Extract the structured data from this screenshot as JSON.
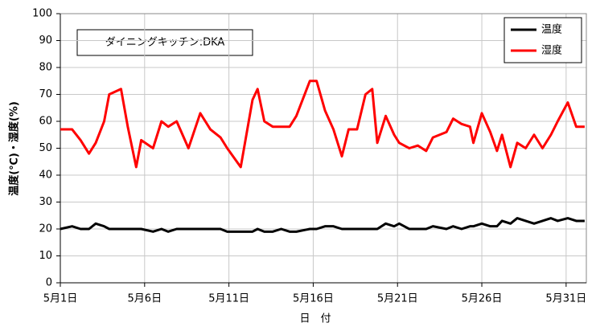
{
  "chart_data": {
    "type": "line",
    "annotation": "ダイニングキッチン:DKA",
    "xlabel": "日　付",
    "ylabel": "温度(℃)・湿度(%)",
    "x": [
      1.0,
      1.7,
      2.2,
      2.7,
      3.1,
      3.6,
      3.9,
      4.6,
      5.0,
      5.5,
      5.8,
      6.5,
      7.0,
      7.4,
      7.9,
      8.6,
      9.3,
      9.9,
      10.5,
      10.9,
      11.7,
      12.4,
      12.7,
      13.1,
      13.6,
      14.1,
      14.6,
      15.0,
      15.8,
      16.2,
      16.7,
      17.2,
      17.7,
      18.1,
      18.6,
      19.1,
      19.5,
      19.8,
      20.3,
      20.8,
      21.1,
      21.7,
      22.2,
      22.7,
      23.1,
      23.9,
      24.3,
      24.8,
      25.3,
      25.5,
      26.0,
      26.5,
      26.9,
      27.2,
      27.7,
      28.1,
      28.6,
      29.1,
      29.6,
      30.1,
      30.5,
      31.1,
      31.6,
      32.1
    ],
    "series": [
      {
        "name": "温度",
        "color": "#000000",
        "values": [
          20,
          21,
          20,
          20,
          22,
          21,
          20,
          20,
          20,
          20,
          20,
          19,
          20,
          19,
          20,
          20,
          20,
          20,
          20,
          19,
          19,
          19,
          20,
          19,
          19,
          20,
          19,
          19,
          20,
          20,
          21,
          21,
          20,
          20,
          20,
          20,
          20,
          20,
          22,
          21,
          22,
          20,
          20,
          20,
          21,
          20,
          21,
          20,
          21,
          21,
          22,
          21,
          21,
          23,
          22,
          24,
          23,
          22,
          23,
          24,
          23,
          24,
          23,
          23
        ]
      },
      {
        "name": "湿度",
        "color": "#ff0000",
        "values": [
          57,
          57,
          53,
          48,
          52,
          60,
          70,
          72,
          58,
          43,
          53,
          50,
          60,
          58,
          60,
          50,
          63,
          57,
          54,
          50,
          43,
          68,
          72,
          60,
          58,
          58,
          58,
          62,
          75,
          75,
          64,
          57,
          47,
          57,
          57,
          70,
          72,
          52,
          62,
          55,
          52,
          50,
          51,
          49,
          54,
          56,
          61,
          59,
          58,
          52,
          63,
          56,
          49,
          55,
          43,
          52,
          50,
          55,
          50,
          55,
          60,
          67,
          58,
          58
        ]
      }
    ],
    "xlim": [
      1,
      32.2
    ],
    "xticks": [
      {
        "value": 1,
        "label": "5月1日"
      },
      {
        "value": 6,
        "label": "5月6日"
      },
      {
        "value": 11,
        "label": "5月11日"
      },
      {
        "value": 16,
        "label": "5月16日"
      },
      {
        "value": 21,
        "label": "5月21日"
      },
      {
        "value": 26,
        "label": "5月26日"
      },
      {
        "value": 31,
        "label": "5月31日"
      }
    ],
    "ylim": [
      0,
      100
    ],
    "yticks": [
      0,
      10,
      20,
      30,
      40,
      50,
      60,
      70,
      80,
      90,
      100
    ],
    "grid": true,
    "legend": "upper right"
  }
}
